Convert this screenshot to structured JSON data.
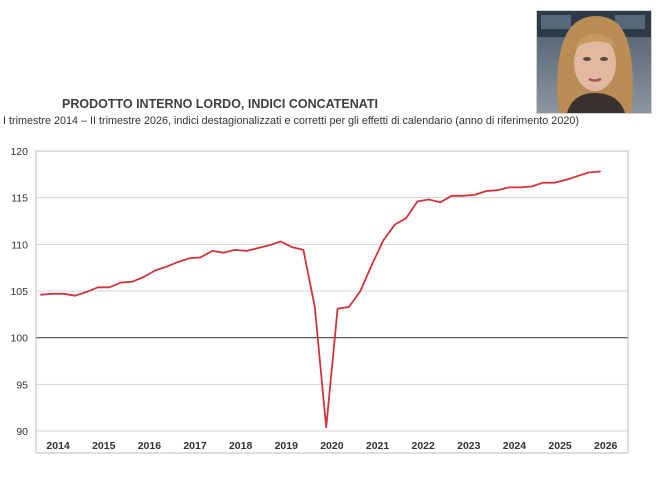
{
  "header": {
    "title": "PRODOTTO INTERNO LORDO, INDICI CONCATENATI",
    "subtitle": "I trimestre 2014 – II trimestre 2026, indici destagionalizzati e corretti per gli effetti di calendario (anno di riferimento 2020)"
  },
  "photo": {
    "description_icon": "person-photo"
  },
  "colors": {
    "line": "#d1343b",
    "grid": "#d4d4d4",
    "reference": "#444444",
    "frame": "#bdbdbd"
  },
  "chart_data": {
    "type": "line",
    "title": "PRODOTTO INTERNO LORDO, INDICI CONCATENATI",
    "subtitle": "I trimestre 2014 – II trimestre 2026, indici destagionalizzati e corretti per gli effetti di calendario (anno di riferimento 2020)",
    "xlabel": "",
    "ylabel": "",
    "ylim": [
      90,
      120
    ],
    "yticks": [
      90,
      95,
      100,
      105,
      110,
      115,
      120
    ],
    "xtick_labels": [
      "2014",
      "2015",
      "2016",
      "2017",
      "2018",
      "2019",
      "2020",
      "2021",
      "2022",
      "2023",
      "2024",
      "2025",
      "2026"
    ],
    "reference_line": 100,
    "grid": "horizontal",
    "series": [
      {
        "x": [
          "2014-Q1",
          "2014-Q2",
          "2014-Q3",
          "2014-Q4",
          "2015-Q1",
          "2015-Q2",
          "2015-Q3",
          "2015-Q4",
          "2016-Q1",
          "2016-Q2",
          "2016-Q3",
          "2016-Q4",
          "2017-Q1",
          "2017-Q2",
          "2017-Q3",
          "2017-Q4",
          "2018-Q1",
          "2018-Q2",
          "2018-Q3",
          "2018-Q4",
          "2019-Q1",
          "2019-Q2",
          "2019-Q3",
          "2019-Q4",
          "2020-Q1",
          "2020-Q2",
          "2020-Q3",
          "2020-Q4",
          "2021-Q1",
          "2021-Q2",
          "2021-Q3",
          "2021-Q4",
          "2022-Q1",
          "2022-Q2",
          "2022-Q3",
          "2022-Q4",
          "2023-Q1",
          "2023-Q2",
          "2023-Q3",
          "2023-Q4",
          "2024-Q1",
          "2024-Q2",
          "2024-Q3",
          "2024-Q4",
          "2025-Q1",
          "2025-Q2",
          "2025-Q3",
          "2025-Q4",
          "2026-Q1",
          "2026-Q2"
        ],
        "values": [
          104.6,
          104.7,
          104.7,
          104.5,
          104.9,
          105.4,
          105.4,
          105.9,
          106.0,
          106.5,
          107.2,
          107.6,
          108.1,
          108.5,
          108.6,
          109.3,
          109.1,
          109.4,
          109.3,
          109.6,
          109.9,
          110.3,
          109.7,
          109.4,
          103.3,
          90.4,
          103.1,
          103.3,
          105.0,
          107.8,
          110.4,
          112.1,
          112.8,
          114.6,
          114.8,
          114.5,
          115.2,
          115.2,
          115.3,
          115.7,
          115.8,
          116.1,
          116.1,
          116.2,
          116.6,
          116.6,
          116.9,
          117.3,
          117.7,
          117.8
        ]
      }
    ]
  }
}
